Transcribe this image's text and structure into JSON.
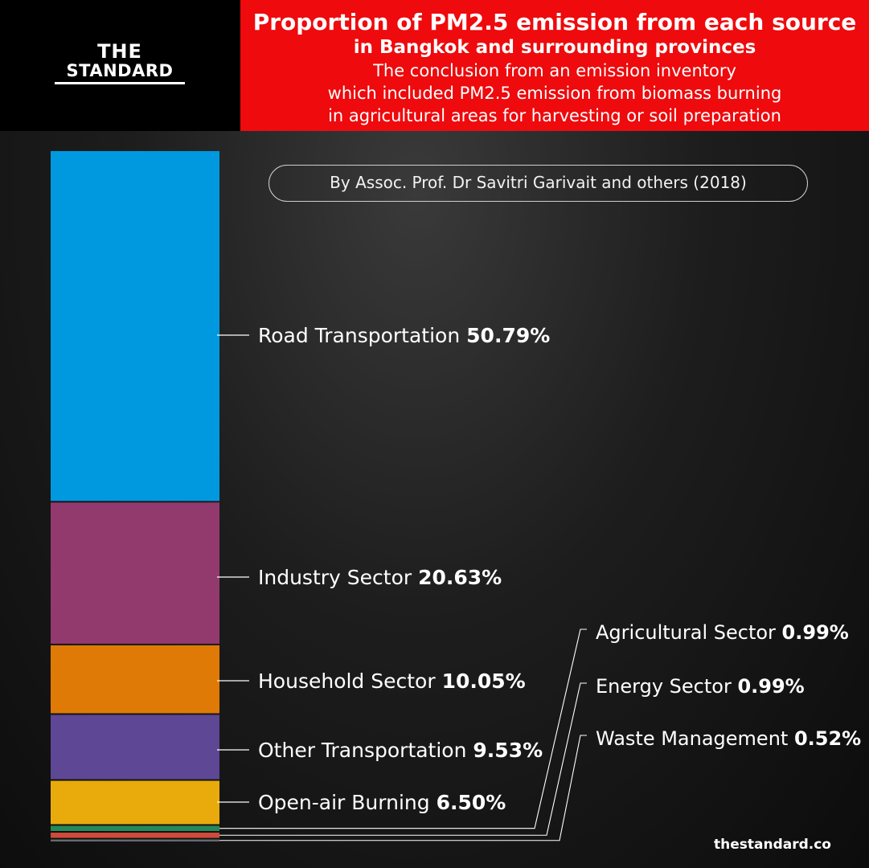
{
  "brand": {
    "logo_line1": "THE",
    "logo_line2": "STANDARD",
    "website": "thestandard.co"
  },
  "header": {
    "title_line1": "Proportion of PM2.5 emission from each source",
    "title_line2": "in Bangkok and surrounding provinces",
    "subtitle_line1": "The conclusion from an emission inventory",
    "subtitle_line2": "which included PM2.5 emission from biomass burning",
    "subtitle_line3": "in agricultural areas for harvesting or soil preparation"
  },
  "credit": "By Assoc. Prof. Dr Savitri Garivait and others (2018)",
  "chart_data": {
    "type": "bar",
    "orientation": "stacked-vertical",
    "categories": [
      "Road Transportation",
      "Industry Sector",
      "Household Sector",
      "Other Transportation",
      "Open-air Burning",
      "Agricultural Sector",
      "Energy Sector",
      "Waste Management"
    ],
    "values": [
      50.79,
      20.63,
      10.05,
      9.53,
      6.5,
      0.99,
      0.99,
      0.52
    ],
    "value_labels": [
      "50.79%",
      "20.63%",
      "10.05%",
      "9.53%",
      "6.50%",
      "0.99%",
      "0.99%",
      "0.52%"
    ],
    "colors": [
      "#0099e0",
      "#923a6e",
      "#e07a07",
      "#5e4794",
      "#e9ab0b",
      "#27895a",
      "#cf4a3b",
      "#666a70"
    ],
    "unit": "%"
  }
}
